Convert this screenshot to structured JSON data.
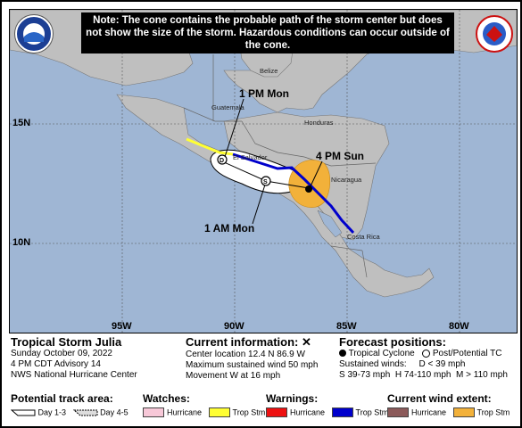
{
  "note": "Note: The cone contains the probable path of the storm center but does not show the size of the storm. Hazardous conditions can occur outside of the cone.",
  "map": {
    "latitudes": [
      "15N",
      "10N"
    ],
    "longitudes": [
      "95W",
      "90W",
      "85W",
      "80W"
    ],
    "labels": {
      "mon_1pm": "1 PM Mon",
      "sun_4pm": "4 PM Sun",
      "mon_1am": "1 AM Mon"
    },
    "countries": [
      "Belize",
      "Guatemala",
      "Honduras",
      "El Salvador",
      "Nicaragua",
      "Costa Rica"
    ],
    "markers": {
      "d": "D",
      "s": "S"
    },
    "colors": {
      "ocean": "#9fb6d4",
      "land": "#bfbfbf",
      "track": "#0000cc",
      "cone": "#ffffff",
      "trop_stm_wind": "#f2b13a",
      "warning_ts": "#0000cc",
      "watch_ts": "#ffff33"
    }
  },
  "storm": {
    "name": "Tropical Storm Julia",
    "date": "Sunday October 09, 2022",
    "advisory": "4 PM CDT Advisory 14",
    "center": "NWS National Hurricane Center"
  },
  "current": {
    "heading": "Current information:",
    "location": "Center location 12.4 N 86.9 W",
    "wind": "Maximum sustained wind 50 mph",
    "movement": "Movement W at 16 mph"
  },
  "forecast": {
    "heading": "Forecast positions:",
    "tc": "Tropical Cyclone",
    "post": "Post/Potential TC",
    "sustained": "Sustained winds:",
    "d": "D < 39 mph",
    "s": "S 39-73 mph",
    "h": "H 74-110 mph",
    "m": "M > 110 mph"
  },
  "legend": {
    "track_heading": "Potential track area:",
    "day13": "Day 1-3",
    "day45": "Day 4-5",
    "watches_heading": "Watches:",
    "warnings_heading": "Warnings:",
    "wind_heading": "Current wind extent:",
    "hurricane": "Hurricane",
    "trop_stm": "Trop Stm"
  }
}
